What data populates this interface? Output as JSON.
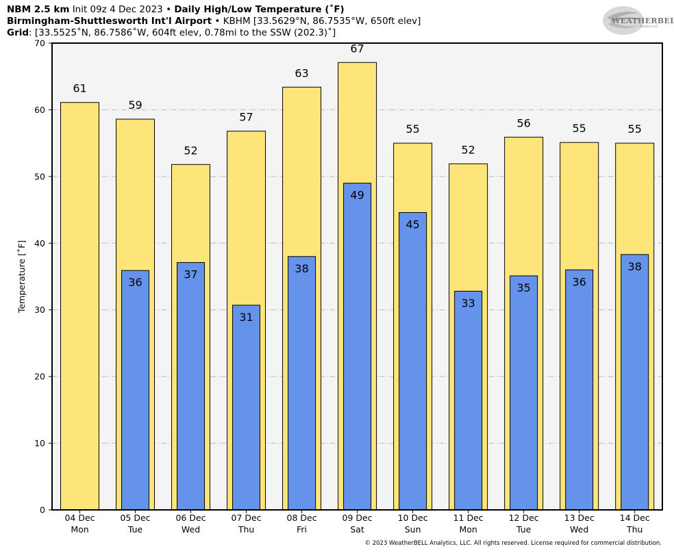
{
  "header": {
    "model": "NBM 2.5 km",
    "init": "Init 09z 4 Dec 2023",
    "sep1": "•",
    "product": "Daily High/Low Temperature (˚F)",
    "station": "Birmingham-Shuttlesworth Int'l Airport",
    "sep2": "•",
    "station_info": "KBHM [33.5629°N, 86.7535°W, 650ft elev]",
    "grid_label": "Grid",
    "grid_info": ": [33.5525˚N, 86.7586˚W, 604ft elev, 0.78mi to the SSW (202.3)˚]"
  },
  "logo": {
    "text": "WEATHERBELL",
    "sub": "Analytics LLC"
  },
  "copyright": "© 2023 WeatherBELL Analytics, LLC. All rights reserved. License required for commercial distribution.",
  "chart_data": {
    "type": "bar",
    "ylabel": "Temperature [˚F]",
    "ylim": [
      0,
      70
    ],
    "yticks": [
      0,
      10,
      20,
      30,
      40,
      50,
      60,
      70
    ],
    "grid": true,
    "categories": [
      "04 Dec",
      "05 Dec",
      "06 Dec",
      "07 Dec",
      "08 Dec",
      "09 Dec",
      "10 Dec",
      "11 Dec",
      "12 Dec",
      "13 Dec",
      "14 Dec"
    ],
    "days": [
      "Mon",
      "Tue",
      "Wed",
      "Thu",
      "Fri",
      "Sat",
      "Sun",
      "Mon",
      "Tue",
      "Wed",
      "Thu"
    ],
    "series": [
      {
        "name": "High",
        "color": "#fee57a",
        "values": [
          61.1,
          58.6,
          51.8,
          56.8,
          63.4,
          67.1,
          55.0,
          51.9,
          55.9,
          55.1,
          55.0
        ],
        "labels": [
          "61",
          "59",
          "52",
          "57",
          "63",
          "67",
          "55",
          "52",
          "56",
          "55",
          "55"
        ]
      },
      {
        "name": "Low",
        "color": "#6593ec",
        "values": [
          null,
          35.9,
          37.1,
          30.7,
          38.0,
          49.0,
          44.6,
          32.8,
          35.1,
          36.0,
          38.3
        ],
        "labels": [
          "",
          "36",
          "37",
          "31",
          "38",
          "49",
          "45",
          "33",
          "35",
          "36",
          "38"
        ]
      }
    ]
  }
}
